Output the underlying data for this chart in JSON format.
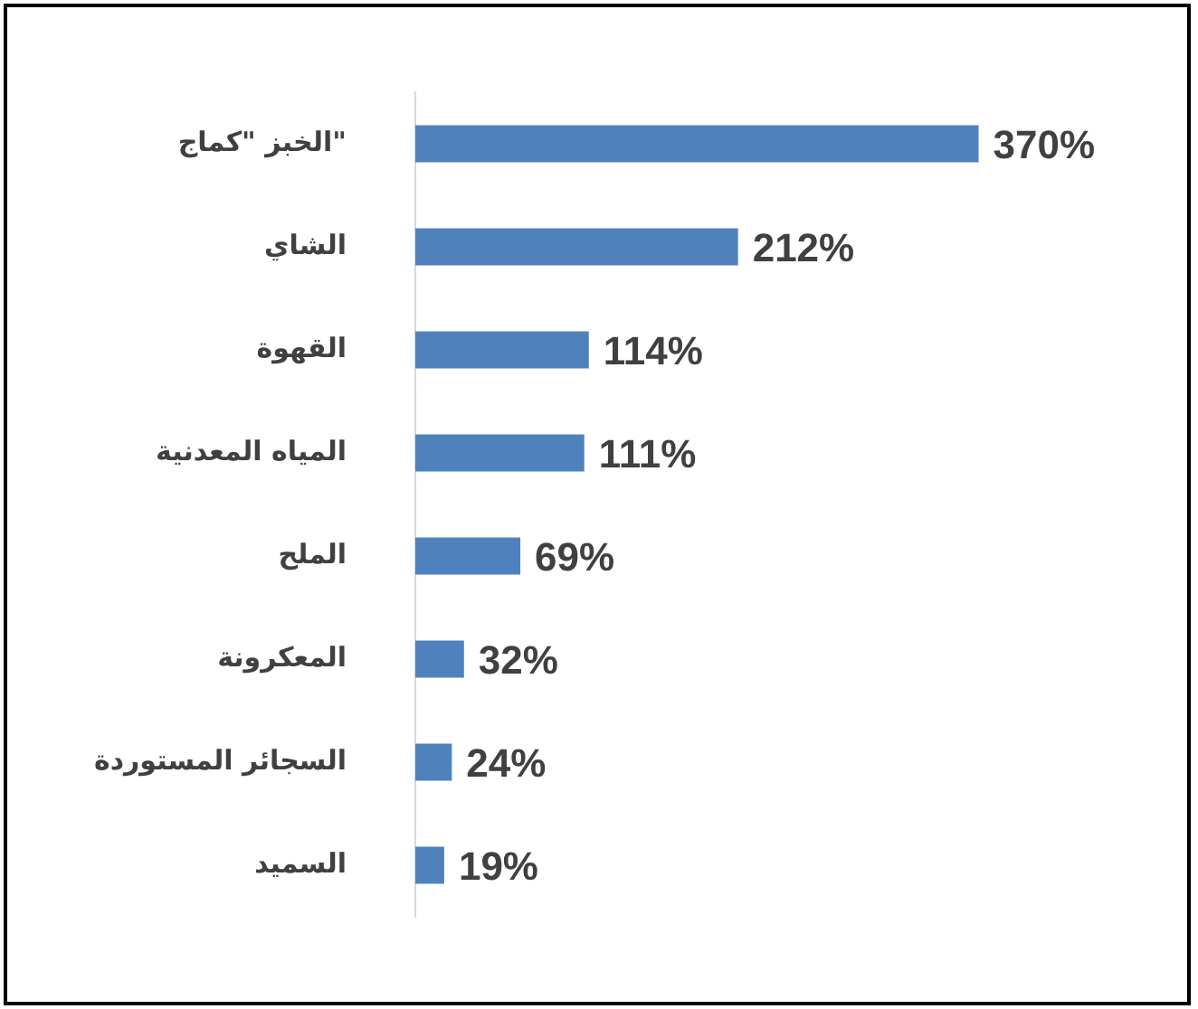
{
  "chart_data": {
    "type": "bar",
    "orientation": "horizontal",
    "categories": [
      "الخبز \"كماج\"",
      "الشاي",
      "القهوة",
      "المياه المعدنية",
      "الملح",
      "المعكرونة",
      "السجائر المستوردة",
      "السميد"
    ],
    "values": [
      370,
      212,
      114,
      111,
      69,
      32,
      24,
      19
    ],
    "value_labels": [
      "370%",
      "212%",
      "114%",
      "111%",
      "69%",
      "32%",
      "24%",
      "19%"
    ],
    "color": "#4f81bd"
  }
}
